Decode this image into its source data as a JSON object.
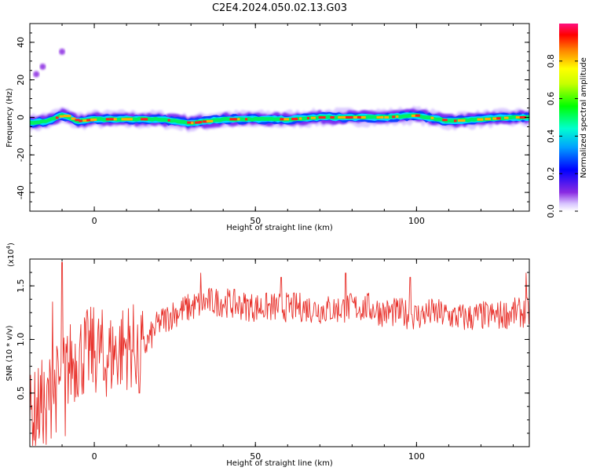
{
  "title": "C2E4.2024.050.02.13.G03",
  "charts": [
    {
      "type": "heatmap",
      "xlabel": "Height of straight line (km)",
      "ylabel": "Frequency (Hz)",
      "xlim": [
        -20,
        135
      ],
      "ylim": [
        -50,
        50
      ],
      "xticks": [
        0,
        50,
        100
      ],
      "yticks": [
        -40,
        -20,
        0,
        20,
        40
      ],
      "xtick_labels": [
        "0",
        "50",
        "100"
      ],
      "ytick_labels": [
        "-40",
        "-20",
        "0",
        "20",
        "40"
      ],
      "colorbar": {
        "label": "Normalized spectral amplitude",
        "range": [
          0,
          1
        ],
        "ticks": [
          0.0,
          0.2,
          0.4,
          0.6,
          0.8
        ],
        "tick_labels": [
          "0.0",
          "0.2",
          "0.4",
          "0.6",
          "0.8"
        ],
        "colormap": "rainbow (violet → blue → cyan → green → yellow → red → magenta)"
      },
      "band": {
        "description": "narrow band of high amplitude centered near 0 Hz across the full height range",
        "center_hz": [
          [
            -20,
            -3
          ],
          [
            -15,
            -2
          ],
          [
            -10,
            1
          ],
          [
            -5,
            -2
          ],
          [
            0,
            -1
          ],
          [
            10,
            -1
          ],
          [
            20,
            -1
          ],
          [
            30,
            -3
          ],
          [
            40,
            -1
          ],
          [
            50,
            -1
          ],
          [
            60,
            -1
          ],
          [
            70,
            0
          ],
          [
            80,
            0
          ],
          [
            90,
            0
          ],
          [
            100,
            1
          ],
          [
            110,
            -2
          ],
          [
            120,
            -1
          ],
          [
            130,
            0
          ],
          [
            135,
            0
          ]
        ],
        "outliers": [
          [
            -18,
            23
          ],
          [
            -16,
            27
          ],
          [
            -10,
            35
          ]
        ]
      }
    },
    {
      "type": "line",
      "xlabel": "Height of straight line (km)",
      "ylabel": "SNR (10 * v/v)",
      "yscale_note": "(x10",
      "yscale_exp": "4",
      "yscale_close": ")",
      "xlim": [
        -20,
        135
      ],
      "ylim": [
        0,
        1.75
      ],
      "xticks": [
        0,
        50,
        100
      ],
      "yticks": [
        0.5,
        1.0,
        1.5
      ],
      "xtick_labels": [
        "0",
        "50",
        "100"
      ],
      "ytick_labels": [
        "0.5",
        "1.0",
        "1.5"
      ],
      "color": "#e8302a",
      "series": [
        {
          "name": "",
          "trend": [
            [
              -20,
              0.25
            ],
            [
              -15,
              0.45
            ],
            [
              -10,
              0.6
            ],
            [
              -8,
              0.75
            ],
            [
              -5,
              0.85
            ],
            [
              0,
              0.9
            ],
            [
              5,
              0.85
            ],
            [
              10,
              0.95
            ],
            [
              15,
              0.9
            ],
            [
              20,
              1.15
            ],
            [
              25,
              1.25
            ],
            [
              30,
              1.3
            ],
            [
              35,
              1.35
            ],
            [
              40,
              1.35
            ],
            [
              45,
              1.32
            ],
            [
              50,
              1.3
            ],
            [
              55,
              1.3
            ],
            [
              60,
              1.3
            ],
            [
              65,
              1.3
            ],
            [
              70,
              1.28
            ],
            [
              75,
              1.28
            ],
            [
              80,
              1.3
            ],
            [
              85,
              1.3
            ],
            [
              90,
              1.25
            ],
            [
              95,
              1.25
            ],
            [
              100,
              1.22
            ],
            [
              105,
              1.25
            ],
            [
              110,
              1.22
            ],
            [
              115,
              1.2
            ],
            [
              120,
              1.22
            ],
            [
              125,
              1.22
            ],
            [
              130,
              1.25
            ],
            [
              135,
              1.25
            ]
          ],
          "spikes": [
            [
              -10,
              1.72
            ],
            [
              -13,
              1.35
            ],
            [
              33,
              1.62
            ],
            [
              58,
              1.58
            ],
            [
              78,
              1.62
            ],
            [
              98,
              1.58
            ],
            [
              134,
              1.62
            ]
          ],
          "dips": [
            [
              -15,
              0.02
            ],
            [
              -9,
              0.1
            ],
            [
              14,
              0.5
            ],
            [
              3,
              0.62
            ]
          ]
        }
      ]
    }
  ]
}
